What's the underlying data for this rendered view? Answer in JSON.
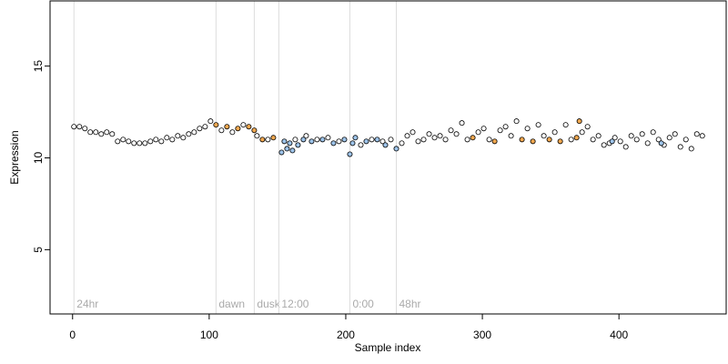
{
  "chart_data": {
    "type": "scatter",
    "x_label": "Sample index",
    "y_label": "Expression",
    "xlim": [
      -16.5,
      478.5
    ],
    "ylim": [
      1.5,
      18.55
    ],
    "xticks": [
      0,
      100,
      200,
      300,
      400
    ],
    "yticks": [
      5,
      10,
      15
    ],
    "annotations": [
      {
        "x": 1,
        "label": "24hr"
      },
      {
        "x": 105,
        "label": "dawn"
      },
      {
        "x": 133,
        "label": "dusk"
      },
      {
        "x": 151,
        "label": "12:00"
      },
      {
        "x": 203,
        "label": "0:00"
      },
      {
        "x": 237,
        "label": "48hr"
      }
    ],
    "series": [
      {
        "color": "#ffffff",
        "x": [
          1,
          5,
          9,
          13,
          17,
          21,
          25,
          29,
          33,
          37,
          41,
          45,
          49,
          53,
          57,
          61,
          65,
          69,
          73,
          77,
          81,
          85,
          89,
          93,
          97,
          101,
          109,
          117,
          125,
          135,
          143,
          163,
          171,
          179,
          187,
          195,
          211,
          219,
          227,
          233,
          241,
          245,
          249,
          253,
          257,
          261,
          265,
          269,
          273,
          277,
          281,
          285,
          289,
          297,
          301,
          305,
          313,
          317,
          321,
          325,
          333,
          341,
          345,
          353,
          361,
          365,
          373,
          377,
          381,
          385,
          389,
          393,
          397,
          401,
          405,
          409,
          413,
          417,
          421,
          425,
          429,
          433,
          437,
          441,
          445,
          449,
          453,
          457,
          461
        ],
        "values": [
          11.7,
          11.7,
          11.6,
          11.4,
          11.4,
          11.3,
          11.4,
          11.3,
          10.9,
          11.0,
          10.9,
          10.8,
          10.8,
          10.8,
          10.9,
          11.0,
          10.9,
          11.1,
          11.0,
          11.2,
          11.1,
          11.3,
          11.4,
          11.6,
          11.7,
          12.0,
          11.5,
          11.4,
          11.8,
          11.2,
          11.0,
          11.0,
          11.2,
          11.0,
          11.1,
          10.9,
          10.7,
          11.0,
          10.9,
          11.0,
          10.8,
          11.2,
          11.4,
          10.9,
          11.0,
          11.3,
          11.1,
          11.2,
          11.0,
          11.5,
          11.3,
          11.9,
          11.0,
          11.4,
          11.6,
          11.0,
          11.5,
          11.7,
          11.2,
          12.0,
          11.6,
          11.8,
          11.2,
          11.4,
          11.8,
          11.0,
          11.4,
          11.7,
          11.0,
          11.2,
          10.7,
          10.8,
          11.1,
          10.9,
          10.6,
          11.2,
          11.0,
          11.3,
          10.8,
          11.4,
          11.0,
          10.7,
          11.1,
          11.3,
          10.6,
          11.0,
          10.5,
          11.3,
          11.2
        ]
      },
      {
        "color": "#f0a850",
        "x": [
          105,
          113,
          121,
          129,
          133,
          139,
          147,
          293,
          309,
          329,
          337,
          349,
          357,
          369,
          371
        ],
        "values": [
          11.8,
          11.7,
          11.6,
          11.7,
          11.5,
          11.0,
          11.1,
          11.1,
          10.9,
          11.0,
          10.9,
          11.0,
          10.9,
          11.1,
          12.0
        ]
      },
      {
        "color": "#9ec4ea",
        "x": [
          153,
          155,
          157,
          159,
          161,
          165,
          169,
          175,
          183,
          191,
          199,
          203,
          205,
          207,
          215,
          223,
          229,
          237,
          395,
          431
        ],
        "values": [
          10.3,
          10.9,
          10.5,
          10.8,
          10.4,
          10.7,
          11.0,
          10.9,
          11.0,
          10.8,
          11.0,
          10.2,
          10.8,
          11.1,
          10.9,
          11.0,
          10.7,
          10.5,
          10.9,
          10.8
        ]
      }
    ]
  }
}
